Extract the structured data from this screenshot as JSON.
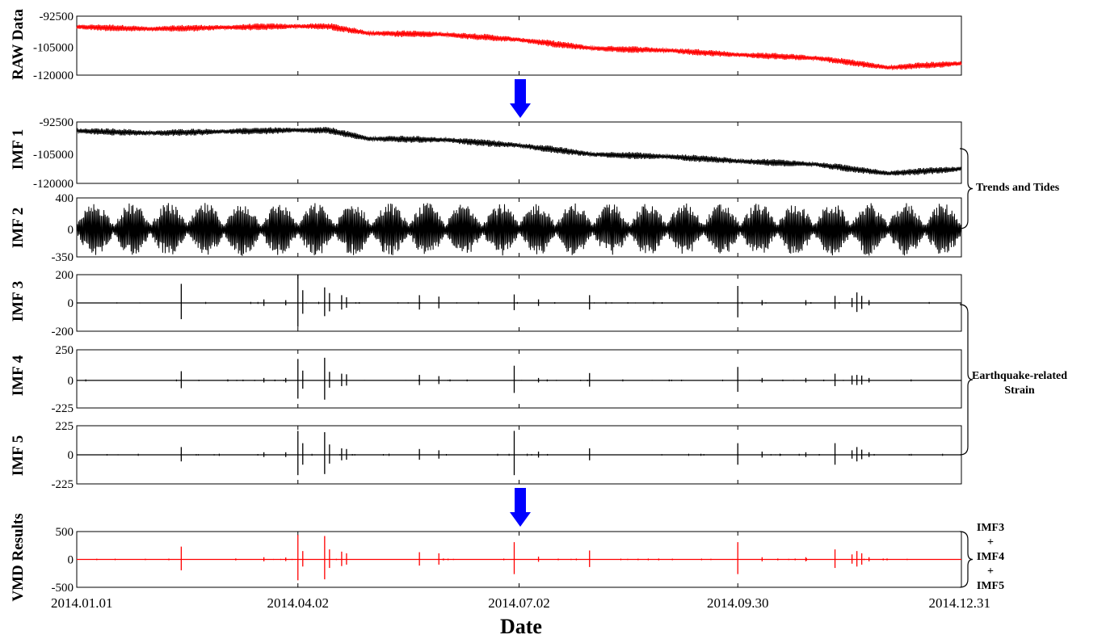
{
  "figure": {
    "x_axis_title": "Date",
    "x_tick_labels": [
      "2014.01.01",
      "2014.04.02",
      "2014.07.02",
      "2014.09.30",
      "2014.12.31"
    ],
    "colors": {
      "raw": "#ff0000",
      "imf": "#000000",
      "vmd": "#ff0000",
      "arrow": "#0000ff",
      "axes": "#000000"
    },
    "arrow_icon": "down-arrow-icon"
  },
  "annotations": {
    "trends": "Trends and Tides",
    "eq_line1": "Earthquake-related",
    "eq_line2": "Strain",
    "vmd_lines": [
      "IMF3",
      "+",
      "IMF4",
      "+",
      "IMF5"
    ]
  },
  "chart_data": [
    {
      "type": "line",
      "ylabel": "RAW Data",
      "ylim": [
        -120000,
        -92500
      ],
      "ytick_labels": [
        "-92500",
        "-105000",
        "-120000"
      ],
      "color": "#ff0000",
      "xlim": [
        "2014.01.01",
        "2014.12.31"
      ],
      "x": [
        "2014.01.01",
        "2014.02.01",
        "2014.03.01",
        "2014.04.02",
        "2014.04.15",
        "2014.05.01",
        "2014.06.01",
        "2014.07.02",
        "2014.08.01",
        "2014.09.01",
        "2014.09.30",
        "2014.11.01",
        "2014.12.01",
        "2014.12.31"
      ],
      "y": [
        -97500,
        -98500,
        -97800,
        -97200,
        -97300,
        -100500,
        -101000,
        -103500,
        -107500,
        -108500,
        -110500,
        -112000,
        -116500,
        -114500
      ]
    },
    {
      "type": "line",
      "ylabel": "IMF 1",
      "ylim": [
        -120000,
        -92500
      ],
      "ytick_labels": [
        "-92500",
        "-105000",
        "-120000"
      ],
      "color": "#000000",
      "xlim": [
        "2014.01.01",
        "2014.12.31"
      ],
      "x": [
        "2014.01.01",
        "2014.02.01",
        "2014.03.01",
        "2014.04.02",
        "2014.04.15",
        "2014.05.01",
        "2014.06.01",
        "2014.07.02",
        "2014.08.01",
        "2014.09.01",
        "2014.09.30",
        "2014.11.01",
        "2014.12.01",
        "2014.12.31"
      ],
      "y": [
        -96500,
        -97500,
        -96800,
        -96200,
        -96300,
        -100000,
        -100500,
        -103000,
        -107000,
        -108000,
        -110000,
        -111500,
        -115500,
        -113500
      ]
    },
    {
      "type": "line",
      "ylabel": "IMF 2",
      "ylim": [
        -350,
        400
      ],
      "ytick_labels": [
        "400",
        "0",
        "-350"
      ],
      "color": "#000000",
      "xlim": [
        "2014.01.01",
        "2014.12.31"
      ],
      "oscillation_amplitude_range": [
        60,
        340
      ]
    },
    {
      "type": "line",
      "ylabel": "IMF 3",
      "ylim": [
        -200,
        200
      ],
      "ytick_labels": [
        "200",
        "0",
        "-200"
      ],
      "color": "#000000",
      "xlim": [
        "2014.01.01",
        "2014.12.31"
      ],
      "spike_dates": [
        "2014.02.13",
        "2014.03.19",
        "2014.03.28",
        "2014.04.02",
        "2014.04.04",
        "2014.04.13",
        "2014.04.15",
        "2014.04.20",
        "2014.04.22",
        "2014.05.22",
        "2014.05.30",
        "2014.06.30",
        "2014.07.10",
        "2014.07.31",
        "2014.09.30",
        "2014.10.10",
        "2014.10.28",
        "2014.11.09",
        "2014.11.16",
        "2014.11.18",
        "2014.11.20",
        "2014.11.23"
      ],
      "spike_values": [
        135,
        25,
        20,
        200,
        90,
        110,
        70,
        55,
        40,
        55,
        45,
        60,
        25,
        55,
        120,
        20,
        20,
        50,
        35,
        75,
        50,
        20
      ]
    },
    {
      "type": "line",
      "ylabel": "IMF 4",
      "ylim": [
        -225,
        250
      ],
      "ytick_labels": [
        "250",
        "0",
        "-225"
      ],
      "color": "#000000",
      "xlim": [
        "2014.01.01",
        "2014.12.31"
      ],
      "spike_dates": [
        "2014.02.13",
        "2014.03.19",
        "2014.03.28",
        "2014.04.02",
        "2014.04.04",
        "2014.04.13",
        "2014.04.15",
        "2014.04.20",
        "2014.04.22",
        "2014.05.22",
        "2014.05.30",
        "2014.06.30",
        "2014.07.10",
        "2014.07.31",
        "2014.09.30",
        "2014.10.10",
        "2014.10.28",
        "2014.11.09",
        "2014.11.16",
        "2014.11.18",
        "2014.11.20",
        "2014.11.23"
      ],
      "spike_values": [
        75,
        20,
        20,
        175,
        80,
        185,
        70,
        55,
        50,
        45,
        35,
        120,
        20,
        60,
        110,
        20,
        20,
        55,
        40,
        45,
        40,
        20
      ]
    },
    {
      "type": "line",
      "ylabel": "IMF 5",
      "ylim": [
        -225,
        225
      ],
      "ytick_labels": [
        "225",
        "0",
        "-225"
      ],
      "color": "#000000",
      "xlim": [
        "2014.01.01",
        "2014.12.31"
      ],
      "spike_dates": [
        "2014.02.13",
        "2014.03.19",
        "2014.03.28",
        "2014.04.02",
        "2014.04.04",
        "2014.04.13",
        "2014.04.15",
        "2014.04.20",
        "2014.04.22",
        "2014.05.22",
        "2014.05.30",
        "2014.06.30",
        "2014.07.10",
        "2014.07.31",
        "2014.09.30",
        "2014.10.10",
        "2014.10.28",
        "2014.11.09",
        "2014.11.16",
        "2014.11.18",
        "2014.11.20",
        "2014.11.23"
      ],
      "spike_values": [
        60,
        20,
        20,
        185,
        90,
        175,
        80,
        50,
        45,
        45,
        35,
        185,
        25,
        50,
        90,
        25,
        20,
        90,
        35,
        60,
        40,
        20
      ]
    },
    {
      "type": "line",
      "ylabel": "VMD Results",
      "ylim": [
        -500,
        500
      ],
      "ytick_labels": [
        "500",
        "0",
        "-500"
      ],
      "color": "#ff0000",
      "xlim": [
        "2014.01.01",
        "2014.12.31"
      ],
      "spike_dates": [
        "2014.02.13",
        "2014.03.19",
        "2014.03.28",
        "2014.04.02",
        "2014.04.04",
        "2014.04.13",
        "2014.04.15",
        "2014.04.20",
        "2014.04.22",
        "2014.05.22",
        "2014.05.30",
        "2014.06.30",
        "2014.07.10",
        "2014.07.31",
        "2014.09.30",
        "2014.10.10",
        "2014.10.28",
        "2014.11.09",
        "2014.11.16",
        "2014.11.18",
        "2014.11.20",
        "2014.11.23"
      ],
      "spike_values": [
        230,
        40,
        35,
        440,
        150,
        420,
        180,
        140,
        110,
        130,
        110,
        310,
        50,
        160,
        310,
        40,
        40,
        180,
        90,
        150,
        110,
        40
      ]
    }
  ]
}
